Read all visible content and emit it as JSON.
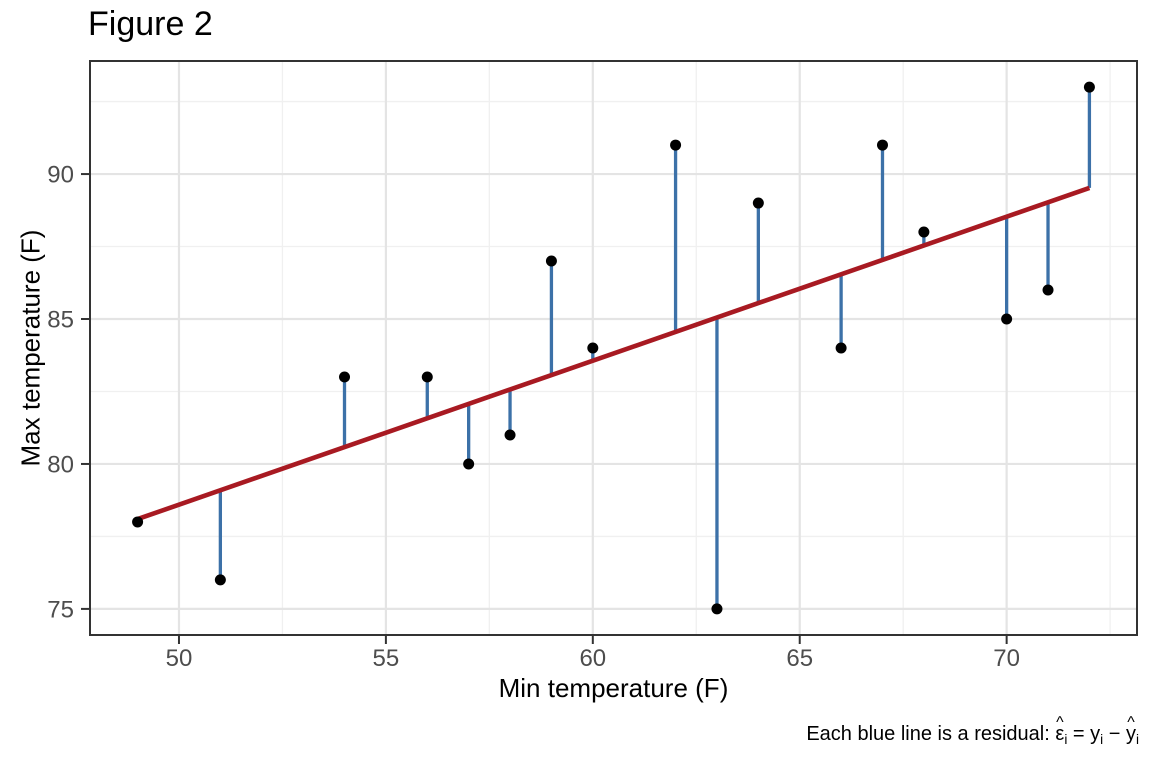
{
  "figure": {
    "title": "Figure 2",
    "x_axis_label": "Min temperature (F)",
    "y_axis_label": "Max temperature (F)",
    "caption_prefix": "Each blue line is a residual:",
    "caption_formula_tokens": [
      {
        "base": "ε",
        "hat": true,
        "sub": "i"
      },
      {
        "base": " = ",
        "hat": false,
        "sub": ""
      },
      {
        "base": "y",
        "hat": false,
        "sub": "i"
      },
      {
        "base": " − ",
        "hat": false,
        "sub": ""
      },
      {
        "base": "y",
        "hat": true,
        "sub": "i"
      }
    ]
  },
  "colors": {
    "background": "#ffffff",
    "panel_border": "#333333",
    "grid_major": "#e4e4e4",
    "grid_minor": "#f0f0f0",
    "axis_tick": "#333333",
    "axis_text": "#4d4d4d",
    "regression_red": "#a81a22",
    "residual_blue": "#3c71a8",
    "point_black": "#000000"
  },
  "chart_data": {
    "type": "scatter",
    "title": "Figure 2",
    "xlabel": "Min temperature (F)",
    "ylabel": "Max temperature (F)",
    "points": [
      [
        49,
        78
      ],
      [
        51,
        76
      ],
      [
        54,
        83
      ],
      [
        56,
        83
      ],
      [
        57,
        80
      ],
      [
        58,
        81
      ],
      [
        59,
        87
      ],
      [
        60,
        84
      ],
      [
        62,
        91
      ],
      [
        63,
        75
      ],
      [
        64,
        89
      ],
      [
        66,
        84
      ],
      [
        67,
        91
      ],
      [
        68,
        88
      ],
      [
        70,
        85
      ],
      [
        71,
        86
      ],
      [
        72,
        93
      ]
    ],
    "regression_line": {
      "intercept": 53.76,
      "slope": 0.4967,
      "x_start": 49,
      "x_end": 72
    },
    "residual_segments": "vertical blue segment from each observed point (x, y) to fitted value (x, intercept + slope*x)",
    "x_ticks": [
      50,
      55,
      60,
      65,
      70
    ],
    "y_ticks": [
      75,
      80,
      85,
      90
    ],
    "x_minor_gridlines": [
      52.5,
      57.5,
      62.5,
      67.5,
      72.5
    ],
    "y_minor_gridlines": [
      77.5,
      82.5,
      87.5,
      92.5
    ],
    "xlim": [
      47.85,
      73.15
    ],
    "ylim": [
      74.1,
      93.9
    ],
    "grid": true,
    "legend": false
  }
}
